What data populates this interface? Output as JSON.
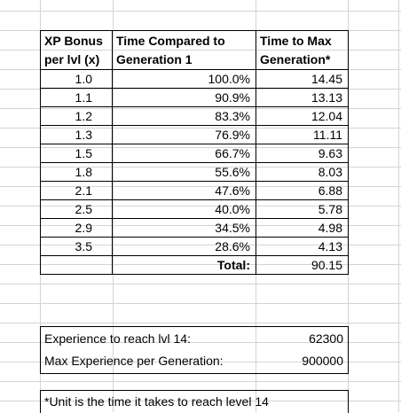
{
  "header": {
    "col1_line1": "XP Bonus",
    "col1_line2": "per lvl (x)",
    "col2_line1": "Time Compared to",
    "col2_line2": "Generation 1",
    "col3_line1": "Time to Max",
    "col3_line2": "Generation*"
  },
  "rows": [
    {
      "bonus": "1.0",
      "compared": "100.0%",
      "time": "14.45"
    },
    {
      "bonus": "1.1",
      "compared": "90.9%",
      "time": "13.13"
    },
    {
      "bonus": "1.2",
      "compared": "83.3%",
      "time": "12.04"
    },
    {
      "bonus": "1.3",
      "compared": "76.9%",
      "time": "11.11"
    },
    {
      "bonus": "1.5",
      "compared": "66.7%",
      "time": "9.63"
    },
    {
      "bonus": "1.8",
      "compared": "55.6%",
      "time": "8.03"
    },
    {
      "bonus": "2.1",
      "compared": "47.6%",
      "time": "6.88"
    },
    {
      "bonus": "2.5",
      "compared": "40.0%",
      "time": "5.78"
    },
    {
      "bonus": "2.9",
      "compared": "34.5%",
      "time": "4.98"
    },
    {
      "bonus": "3.5",
      "compared": "28.6%",
      "time": "4.13"
    }
  ],
  "total": {
    "label": "Total:",
    "value": "90.15"
  },
  "experience": {
    "reach_label": "Experience to reach lvl 14:",
    "reach_value": "62300",
    "max_label": "Max Experience per Generation:",
    "max_value": "900000"
  },
  "footnote": "*Unit is the time it takes to reach level 14"
}
